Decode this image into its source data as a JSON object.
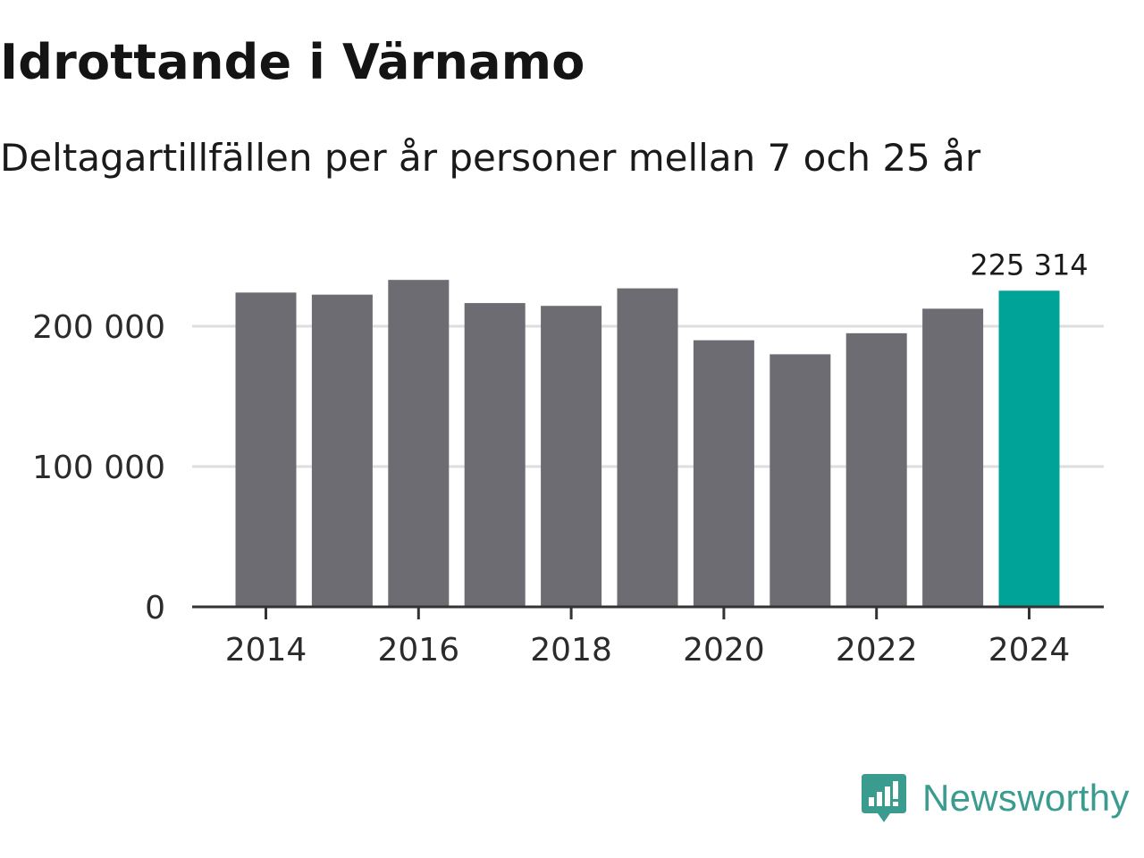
{
  "chart_data": {
    "type": "bar",
    "title": "Idrottande i Värnamo",
    "subtitle": "Deltagartillfällen per år personer mellan 7 och 25 år",
    "xlabel": "",
    "ylabel": "",
    "categories": [
      "2014",
      "2015",
      "2016",
      "2017",
      "2018",
      "2019",
      "2020",
      "2021",
      "2022",
      "2023",
      "2024"
    ],
    "values": [
      224000,
      222500,
      233000,
      216500,
      214500,
      227000,
      190000,
      180000,
      195000,
      212500,
      225314
    ],
    "ylim": [
      0,
      250000
    ],
    "yticks": [
      0,
      100000,
      200000
    ],
    "ytick_labels": [
      "0",
      "100 000",
      "200 000"
    ],
    "xtick_labels": [
      "2014",
      "2016",
      "2018",
      "2020",
      "2022",
      "2024"
    ],
    "highlight_index": 10,
    "highlight_label": "225 314",
    "colors": {
      "bar": "#6d6c72",
      "highlight": "#00a398",
      "grid": "#dedede",
      "axis": "#333333"
    },
    "grid": true
  },
  "brand": {
    "name": "Newsworthy",
    "icon": "newsworthy-logo-icon",
    "color": "#3a9b8f"
  }
}
